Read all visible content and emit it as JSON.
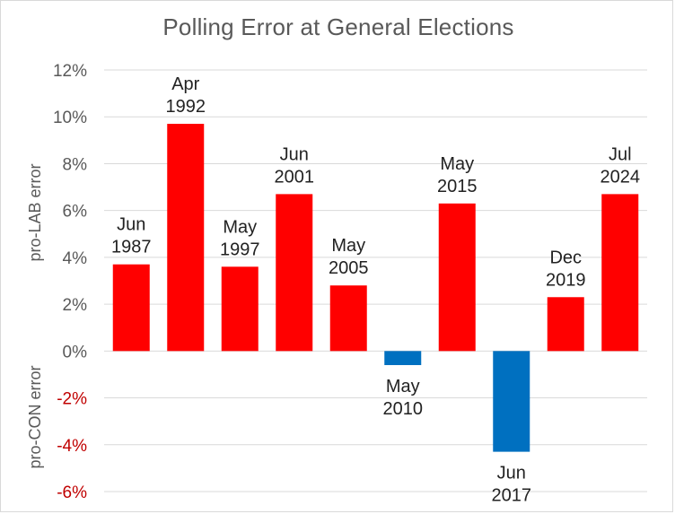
{
  "chart_data": {
    "type": "bar",
    "title": "Polling Error at General Elections",
    "xlabel": "",
    "ylabel_positive": "pro-LAB error",
    "ylabel_negative": "pro-CON error",
    "ylim": [
      -0.06,
      0.12
    ],
    "y_ticks": [
      "12%",
      "10%",
      "8%",
      "6%",
      "4%",
      "2%",
      "0%",
      "-2%",
      "-4%",
      "-6%"
    ],
    "y_tick_values": [
      0.12,
      0.1,
      0.08,
      0.06,
      0.04,
      0.02,
      0.0,
      -0.02,
      -0.04,
      -0.06
    ],
    "grid": true,
    "legend": "none",
    "categories": [
      [
        "Jun",
        "1987"
      ],
      [
        "Apr",
        "1992"
      ],
      [
        "May",
        "1997"
      ],
      [
        "Jun",
        "2001"
      ],
      [
        "May",
        "2005"
      ],
      [
        "May",
        "2010"
      ],
      [
        "May",
        "2015"
      ],
      [
        "Jun",
        "2017"
      ],
      [
        "Dec",
        "2019"
      ],
      [
        "Jul",
        "2024"
      ]
    ],
    "values": [
      0.037,
      0.097,
      0.036,
      0.067,
      0.028,
      -0.006,
      0.063,
      -0.043,
      0.023,
      0.067
    ],
    "colors": {
      "positive_bar": "#ff0000",
      "negative_bar": "#0070c0",
      "positive_tick": "#595959",
      "negative_tick": "#c00000",
      "gridline": "#d9d9d9"
    }
  }
}
